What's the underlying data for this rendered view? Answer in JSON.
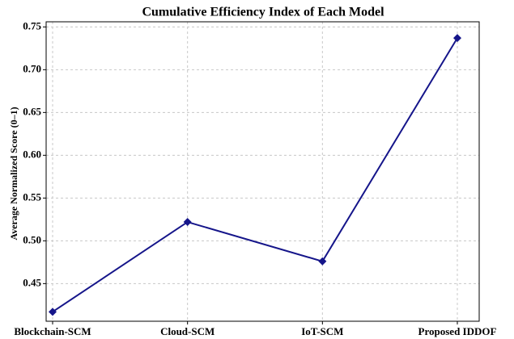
{
  "chart_data": {
    "type": "line",
    "title": "Cumulative Efficiency Index of Each Model",
    "y_label": "Average Normalized Score (0–1)",
    "categories": [
      "Blockchain-SCM",
      "Cloud-SCM",
      "IoT-SCM",
      "Proposed IDDOF"
    ],
    "series": [
      {
        "name": "Cumulative Efficiency Index",
        "color": "#15158a",
        "values": [
          0.417,
          0.522,
          0.476,
          0.737
        ]
      }
    ],
    "ylim": [
      0.406,
      0.756
    ],
    "yticks": [
      0.45,
      {
        "value": 0.5,
        "label": "0.50"
      },
      0.55,
      {
        "value": 0.6,
        "label": "0.60"
      },
      0.65,
      {
        "value": 0.7,
        "label": "0.70"
      },
      0.75
    ],
    "grid": true
  }
}
